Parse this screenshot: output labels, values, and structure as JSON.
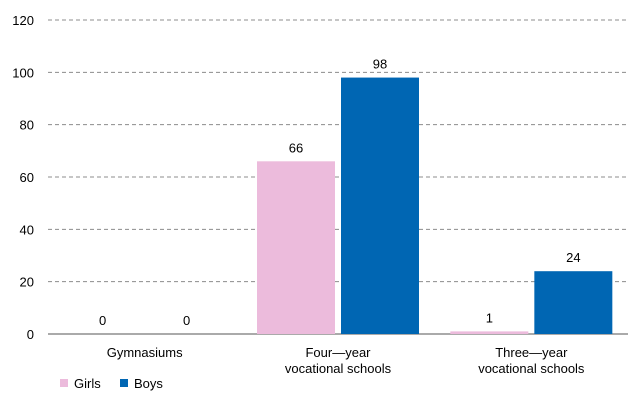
{
  "chart_data": {
    "type": "bar",
    "categories": [
      [
        "Gymnasiums"
      ],
      [
        "Four—year",
        "vocational schools"
      ],
      [
        "Three—year",
        "vocational schools"
      ]
    ],
    "series": [
      {
        "name": "Girls",
        "values": [
          0,
          66,
          1
        ],
        "color": "#ecbbdc"
      },
      {
        "name": "Boys",
        "values": [
          0,
          98,
          24
        ],
        "color": "#0066b3"
      }
    ],
    "ylim": [
      0,
      120
    ],
    "yticks": [
      0,
      20,
      40,
      60,
      80,
      100,
      120
    ],
    "grid": true,
    "grid_style": "dashed",
    "legend_position": "bottom-left",
    "data_labels": true
  }
}
